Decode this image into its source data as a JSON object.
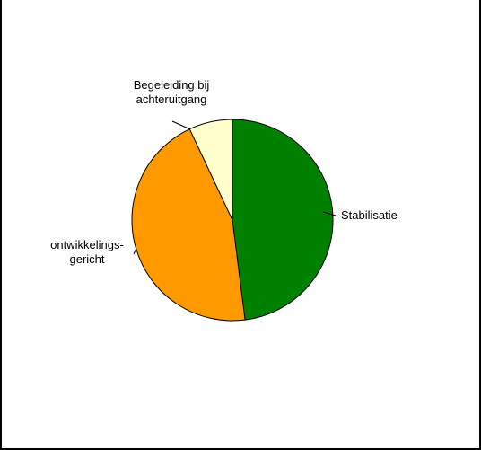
{
  "chart_data": {
    "type": "pie",
    "title": "",
    "categories": [
      "Stabilisatie",
      "ontwikkelings-gericht",
      "Begeleiding bij achteruitgang"
    ],
    "values": [
      48,
      45,
      7
    ],
    "unit": "%",
    "colors": [
      "#008000",
      "#FF9900",
      "#FFFFCC"
    ],
    "start_angle_deg": 0,
    "direction": "clockwise",
    "legend": "none",
    "labels": [
      {
        "lines": [
          "Stabilisatie"
        ],
        "anchor": "start",
        "placement": "right"
      },
      {
        "lines": [
          "ontwikkelings-",
          "gericht"
        ],
        "anchor": "middle",
        "placement": "left"
      },
      {
        "lines": [
          "Begeleiding bij",
          "achteruitgang"
        ],
        "anchor": "middle",
        "placement": "top"
      }
    ]
  }
}
